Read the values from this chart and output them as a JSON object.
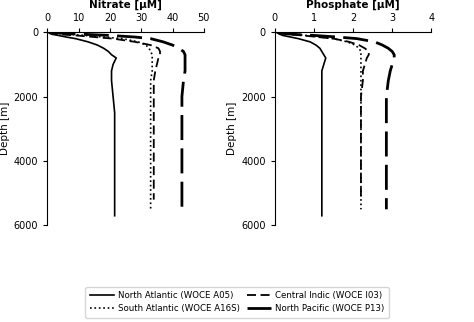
{
  "title_nitrate": "Nitrate [μM]",
  "title_phosphate": "Phosphate [μM]",
  "ylabel": "Depth [m]",
  "nitrate_xlim": [
    0,
    50
  ],
  "nitrate_xticks": [
    0,
    10,
    20,
    30,
    40,
    50
  ],
  "phosphate_xlim": [
    0,
    4
  ],
  "phosphate_xticks": [
    0,
    1,
    2,
    3,
    4
  ],
  "ylim": [
    6000,
    0
  ],
  "yticks": [
    0,
    2000,
    4000,
    6000
  ],
  "legend_labels": [
    "North Atlantic (WOCE A05)",
    "South Atlantic (WOCE A16S)",
    "Central Indic (WOCE I03)",
    "North Pacific (WOCE P13)"
  ],
  "north_atlantic_nitrate_depth": [
    0,
    20,
    50,
    75,
    100,
    150,
    200,
    250,
    300,
    400,
    500,
    600,
    700,
    800,
    900,
    1000,
    1200,
    1500,
    2000,
    2500,
    3000,
    3500,
    4000,
    5000,
    5700
  ],
  "north_atlantic_nitrate": [
    0.2,
    0.5,
    1.0,
    2.0,
    3.5,
    6.0,
    9.0,
    11.0,
    13.0,
    16.0,
    18.0,
    19.5,
    20.5,
    22.0,
    21.5,
    21.0,
    20.5,
    20.5,
    21.0,
    21.5,
    21.5,
    21.5,
    21.5,
    21.5,
    21.5
  ],
  "south_atlantic_nitrate_depth": [
    0,
    20,
    50,
    75,
    100,
    150,
    200,
    300,
    400,
    500,
    600,
    700,
    800,
    1000,
    1200,
    1500,
    2000,
    2500,
    3000,
    4000,
    5000,
    5500
  ],
  "south_atlantic_nitrate": [
    1.0,
    2.0,
    5.0,
    8.0,
    12.0,
    18.0,
    24.0,
    29.0,
    31.5,
    32.5,
    33.0,
    33.5,
    33.5,
    33.5,
    33.5,
    33.0,
    33.0,
    33.0,
    33.0,
    33.0,
    33.0,
    33.0
  ],
  "central_indic_nitrate_depth": [
    0,
    20,
    50,
    75,
    100,
    150,
    200,
    300,
    400,
    500,
    600,
    700,
    800,
    1000,
    1200,
    1500,
    1800,
    2000,
    2500,
    3000,
    3500,
    4500,
    5200
  ],
  "central_indic_nitrate": [
    0.5,
    1.0,
    2.0,
    5.0,
    9.0,
    15.0,
    21.0,
    28.0,
    33.0,
    35.5,
    36.0,
    36.0,
    35.5,
    35.0,
    34.5,
    34.0,
    34.0,
    34.0,
    34.0,
    34.0,
    34.0,
    34.0,
    34.0
  ],
  "north_pacific_nitrate_depth": [
    0,
    20,
    50,
    75,
    100,
    150,
    200,
    300,
    400,
    500,
    600,
    700,
    800,
    1000,
    1200,
    1500,
    2000,
    2500,
    3000,
    4000,
    5000,
    5500
  ],
  "north_pacific_nitrate": [
    1.0,
    3.0,
    8.0,
    14.0,
    20.0,
    28.0,
    33.0,
    37.0,
    40.0,
    42.0,
    43.5,
    44.0,
    44.0,
    44.0,
    44.0,
    43.5,
    43.0,
    43.0,
    43.0,
    43.0,
    43.0,
    43.0
  ],
  "north_atlantic_phosphate_depth": [
    0,
    20,
    50,
    75,
    100,
    150,
    200,
    300,
    400,
    500,
    600,
    700,
    800,
    1000,
    1200,
    1500,
    2000,
    2500,
    3000,
    4000,
    5000,
    5700
  ],
  "north_atlantic_phosphate": [
    0.05,
    0.08,
    0.1,
    0.15,
    0.2,
    0.4,
    0.6,
    0.9,
    1.05,
    1.15,
    1.2,
    1.25,
    1.3,
    1.25,
    1.2,
    1.2,
    1.2,
    1.2,
    1.2,
    1.2,
    1.2,
    1.2
  ],
  "south_atlantic_phosphate_depth": [
    0,
    20,
    50,
    75,
    100,
    150,
    200,
    300,
    400,
    500,
    600,
    700,
    800,
    1000,
    1500,
    2000,
    2500,
    3000,
    4000,
    5000,
    5500
  ],
  "south_atlantic_phosphate": [
    0.1,
    0.2,
    0.35,
    0.55,
    0.8,
    1.15,
    1.5,
    1.85,
    2.05,
    2.15,
    2.2,
    2.2,
    2.2,
    2.2,
    2.2,
    2.2,
    2.2,
    2.2,
    2.2,
    2.2,
    2.2
  ],
  "central_indic_phosphate_depth": [
    0,
    20,
    50,
    75,
    100,
    150,
    200,
    300,
    400,
    500,
    600,
    700,
    800,
    1000,
    1200,
    1500,
    2000,
    2500,
    3000,
    4500,
    5200
  ],
  "central_indic_phosphate": [
    0.1,
    0.15,
    0.25,
    0.45,
    0.7,
    1.1,
    1.5,
    1.9,
    2.15,
    2.3,
    2.4,
    2.4,
    2.35,
    2.3,
    2.25,
    2.25,
    2.2,
    2.2,
    2.2,
    2.2,
    2.2
  ],
  "north_pacific_phosphate_depth": [
    0,
    20,
    50,
    75,
    100,
    150,
    200,
    300,
    400,
    500,
    600,
    700,
    800,
    1000,
    1200,
    1500,
    2000,
    2500,
    3000,
    4000,
    5000,
    5500
  ],
  "north_pacific_phosphate": [
    0.05,
    0.1,
    0.3,
    0.6,
    1.0,
    1.6,
    2.1,
    2.55,
    2.75,
    2.9,
    3.0,
    3.05,
    3.05,
    3.0,
    2.95,
    2.9,
    2.85,
    2.85,
    2.85,
    2.85,
    2.85,
    2.85
  ]
}
